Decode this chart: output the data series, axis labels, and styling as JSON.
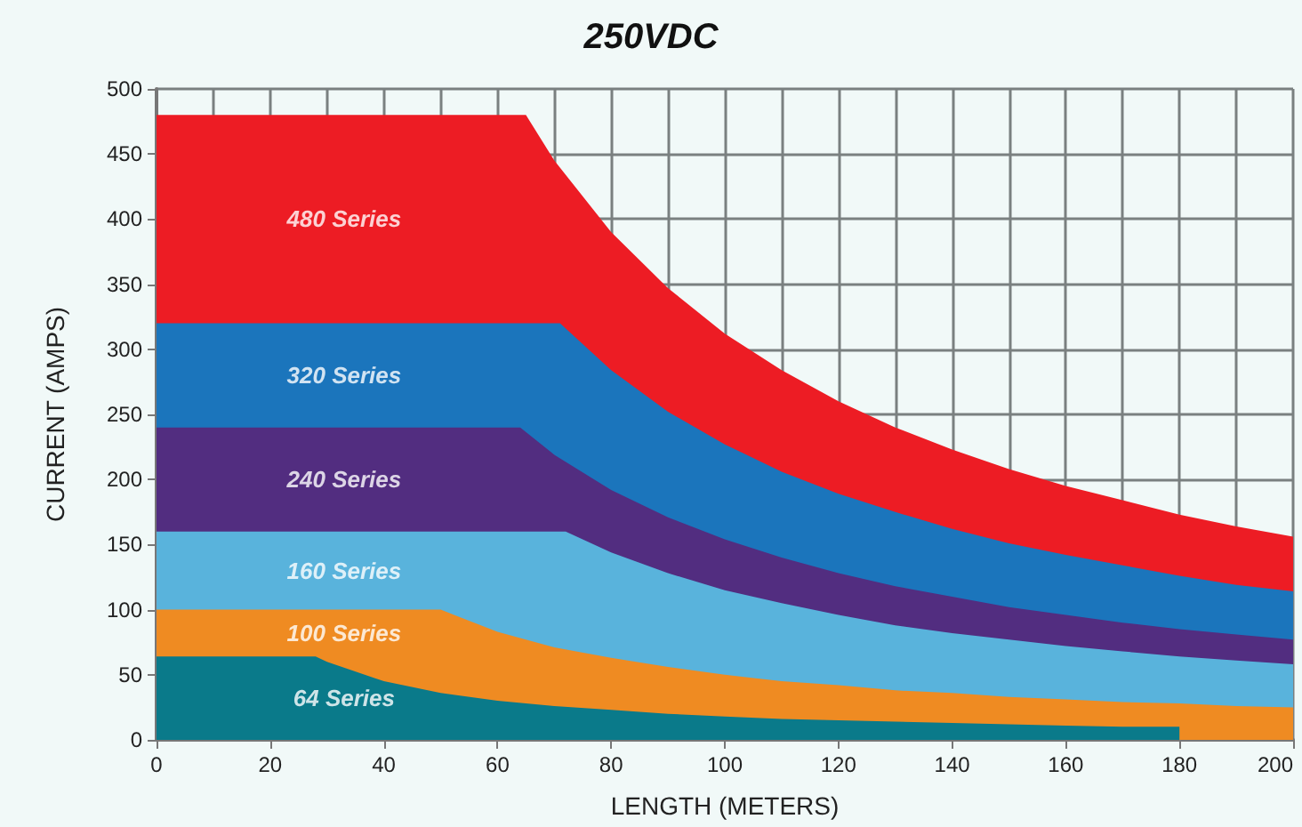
{
  "chart_data": {
    "type": "area",
    "title": "250VDC",
    "xlabel": "LENGTH (METERS)",
    "ylabel": "CURRENT (AMPS)",
    "xlim": [
      0,
      200
    ],
    "xticks": [
      0,
      20,
      40,
      60,
      80,
      100,
      120,
      140,
      160,
      180,
      200
    ],
    "ylim": [
      0,
      500
    ],
    "yticks": [
      0,
      50,
      100,
      150,
      200,
      250,
      300,
      350,
      400,
      450,
      500
    ],
    "grid": true,
    "series": [
      {
        "name": "480 Series",
        "color": "#ed1c24",
        "x": [
          0,
          65,
          70,
          80,
          90,
          100,
          110,
          120,
          130,
          140,
          150,
          160,
          170,
          180,
          190,
          200
        ],
        "values": [
          480,
          480,
          445,
          390,
          347,
          312,
          284,
          260,
          240,
          223,
          208,
          195,
          184,
          173,
          164,
          156
        ]
      },
      {
        "name": "320 Series",
        "color": "#1b75bc",
        "x": [
          0,
          71,
          80,
          90,
          100,
          110,
          120,
          130,
          140,
          150,
          160,
          170,
          180,
          190,
          200
        ],
        "values": [
          320,
          320,
          284,
          252,
          227,
          206,
          189,
          175,
          162,
          151,
          142,
          134,
          126,
          119,
          114
        ]
      },
      {
        "name": "240 Series",
        "color": "#522d80",
        "x": [
          0,
          64,
          70,
          80,
          90,
          100,
          110,
          120,
          130,
          140,
          150,
          160,
          170,
          180,
          190,
          200
        ],
        "values": [
          240,
          240,
          219,
          192,
          171,
          154,
          140,
          128,
          118,
          110,
          102,
          96,
          90,
          85,
          81,
          77
        ]
      },
      {
        "name": "160 Series",
        "color": "#59b3dc",
        "x": [
          0,
          72,
          80,
          90,
          100,
          110,
          120,
          130,
          140,
          150,
          160,
          170,
          180,
          190,
          200
        ],
        "values": [
          160,
          160,
          144,
          128,
          115,
          105,
          96,
          88,
          82,
          77,
          72,
          68,
          64,
          61,
          58
        ]
      },
      {
        "name": "100 Series",
        "color": "#ef8b22",
        "x": [
          0,
          50,
          60,
          70,
          80,
          90,
          100,
          110,
          120,
          130,
          140,
          150,
          160,
          170,
          180,
          190,
          200
        ],
        "values": [
          100,
          100,
          83,
          71,
          63,
          56,
          50,
          45,
          42,
          38,
          36,
          33,
          31,
          29,
          28,
          26,
          25
        ]
      },
      {
        "name": "64 Series",
        "color": "#0a7a8a",
        "x": [
          0,
          28,
          30,
          40,
          50,
          60,
          70,
          80,
          90,
          100,
          110,
          120,
          130,
          140,
          150,
          160,
          170,
          180
        ],
        "values": [
          64,
          64,
          60,
          45,
          36,
          30,
          26,
          23,
          20,
          18,
          16,
          15,
          14,
          13,
          12,
          11,
          10,
          10
        ]
      }
    ]
  }
}
